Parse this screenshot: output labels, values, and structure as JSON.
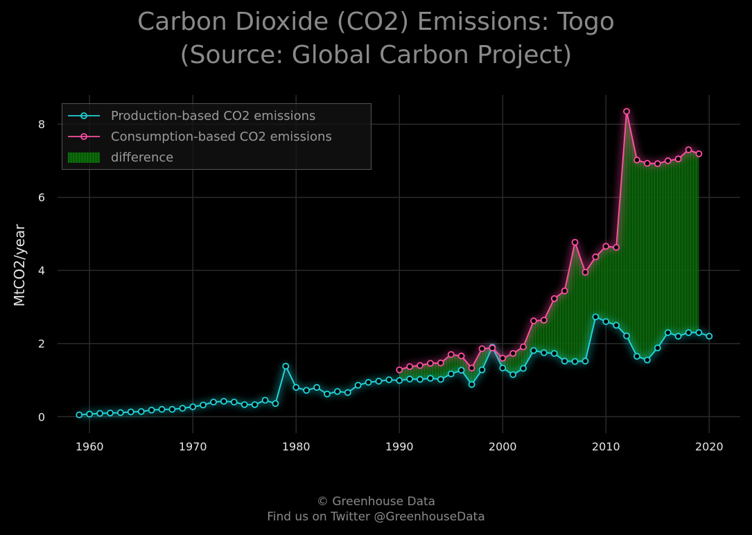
{
  "title_line1": "Carbon Dioxide (CO2) Emissions: Togo",
  "title_line2": "(Source: Global Carbon Project)",
  "footer_line1": "© Greenhouse Data",
  "footer_line2": "Find us on Twitter @GreenhouseData",
  "colors": {
    "production": "#22d3d8",
    "consumption": "#ff4fa3",
    "difference": "#0a6e0a",
    "grid": "#2a2a2a",
    "background": "#000000"
  },
  "chart_data": {
    "type": "line",
    "title": "Carbon Dioxide (CO2) Emissions: Togo (Source: Global Carbon Project)",
    "xlabel": "",
    "ylabel": "MtCO2/year",
    "xlim": [
      1956.9,
      2023
    ],
    "ylim": [
      -0.45,
      8.8
    ],
    "xticks": [
      1960,
      1970,
      1980,
      1990,
      2000,
      2010,
      2020
    ],
    "yticks": [
      0,
      2,
      4,
      6,
      8
    ],
    "grid": true,
    "legend_position": "top-left",
    "series": [
      {
        "name": "Production-based CO2 emissions",
        "x": [
          1959,
          1960,
          1961,
          1962,
          1963,
          1964,
          1965,
          1966,
          1967,
          1968,
          1969,
          1970,
          1971,
          1972,
          1973,
          1974,
          1975,
          1976,
          1977,
          1978,
          1979,
          1980,
          1981,
          1982,
          1983,
          1984,
          1985,
          1986,
          1987,
          1988,
          1989,
          1990,
          1991,
          1992,
          1993,
          1994,
          1995,
          1996,
          1997,
          1998,
          1999,
          2000,
          2001,
          2002,
          2003,
          2004,
          2005,
          2006,
          2007,
          2008,
          2009,
          2010,
          2011,
          2012,
          2013,
          2014,
          2015,
          2016,
          2017,
          2018,
          2019,
          2020
        ],
        "y": [
          0.05,
          0.07,
          0.09,
          0.1,
          0.11,
          0.13,
          0.14,
          0.18,
          0.2,
          0.2,
          0.23,
          0.27,
          0.32,
          0.4,
          0.42,
          0.4,
          0.33,
          0.33,
          0.45,
          0.36,
          1.38,
          0.8,
          0.72,
          0.8,
          0.62,
          0.69,
          0.66,
          0.86,
          0.94,
          0.97,
          1.01,
          0.99,
          1.03,
          1.02,
          1.05,
          1.02,
          1.17,
          1.27,
          0.88,
          1.28,
          1.9,
          1.33,
          1.15,
          1.32,
          1.81,
          1.75,
          1.73,
          1.52,
          1.51,
          1.52,
          2.73,
          2.6,
          2.5,
          2.21,
          1.65,
          1.55,
          1.88,
          2.3,
          2.2,
          2.3,
          2.3,
          2.2
        ]
      },
      {
        "name": "Consumption-based CO2 emissions",
        "x": [
          1990,
          1991,
          1992,
          1993,
          1994,
          1995,
          1996,
          1997,
          1998,
          1999,
          2000,
          2001,
          2002,
          2003,
          2004,
          2005,
          2006,
          2007,
          2008,
          2009,
          2010,
          2011,
          2012,
          2013,
          2014,
          2015,
          2016,
          2017,
          2018,
          2019
        ],
        "y": [
          1.28,
          1.37,
          1.4,
          1.46,
          1.47,
          1.7,
          1.66,
          1.33,
          1.86,
          1.88,
          1.6,
          1.73,
          1.91,
          2.62,
          2.64,
          3.23,
          3.44,
          4.77,
          3.95,
          4.37,
          4.66,
          4.63,
          8.35,
          7.02,
          6.93,
          6.92,
          7.0,
          7.05,
          7.3,
          7.19
        ]
      }
    ],
    "difference_label": "difference"
  }
}
